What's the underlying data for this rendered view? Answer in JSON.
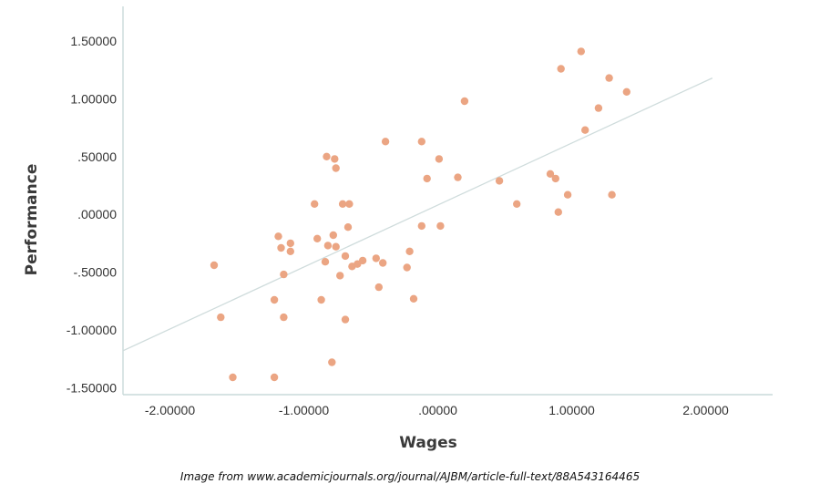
{
  "chart_data": {
    "type": "scatter",
    "xlabel": "Wages",
    "ylabel": "Performance",
    "xlim": [
      -2.35,
      2.5
    ],
    "ylim": [
      -1.56,
      1.8
    ],
    "x_ticks": [
      -2.0,
      -1.0,
      0.0,
      1.0,
      2.0
    ],
    "x_tick_labels": [
      "-2.00000",
      "-1.00000",
      ".00000",
      "1.00000",
      "2.00000"
    ],
    "y_ticks": [
      -1.5,
      -1.0,
      -0.5,
      0.0,
      0.5,
      1.0,
      1.5
    ],
    "y_tick_labels": [
      "-1.50000",
      "-1.00000",
      "-.50000",
      ".00000",
      ".50000",
      "1.00000",
      "1.50000"
    ],
    "grid": false,
    "legend": "none",
    "point_color": "#eba583",
    "fit_line_color": "#cfdcdc",
    "fit_line": {
      "x": [
        -2.35,
        2.05
      ],
      "y": [
        -1.18,
        1.18
      ]
    },
    "points": [
      {
        "x": -1.67,
        "y": -0.44
      },
      {
        "x": -1.62,
        "y": -0.89
      },
      {
        "x": -1.53,
        "y": -1.41
      },
      {
        "x": -1.22,
        "y": -1.41
      },
      {
        "x": -1.22,
        "y": -0.74
      },
      {
        "x": -1.19,
        "y": -0.19
      },
      {
        "x": -1.17,
        "y": -0.29
      },
      {
        "x": -1.15,
        "y": -0.52
      },
      {
        "x": -1.15,
        "y": -0.89
      },
      {
        "x": -1.1,
        "y": -0.25
      },
      {
        "x": -1.1,
        "y": -0.32
      },
      {
        "x": -0.92,
        "y": 0.09
      },
      {
        "x": -0.9,
        "y": -0.21
      },
      {
        "x": -0.87,
        "y": -0.74
      },
      {
        "x": -0.84,
        "y": -0.41
      },
      {
        "x": -0.83,
        "y": 0.5
      },
      {
        "x": -0.82,
        "y": -0.27
      },
      {
        "x": -0.79,
        "y": -1.28
      },
      {
        "x": -0.78,
        "y": -0.18
      },
      {
        "x": -0.77,
        "y": 0.48
      },
      {
        "x": -0.76,
        "y": 0.4
      },
      {
        "x": -0.76,
        "y": -0.28
      },
      {
        "x": -0.73,
        "y": -0.53
      },
      {
        "x": -0.71,
        "y": 0.09
      },
      {
        "x": -0.69,
        "y": -0.36
      },
      {
        "x": -0.69,
        "y": -0.91
      },
      {
        "x": -0.67,
        "y": -0.11
      },
      {
        "x": -0.66,
        "y": 0.09
      },
      {
        "x": -0.64,
        "y": -0.45
      },
      {
        "x": -0.6,
        "y": -0.43
      },
      {
        "x": -0.56,
        "y": -0.4
      },
      {
        "x": -0.46,
        "y": -0.38
      },
      {
        "x": -0.44,
        "y": -0.63
      },
      {
        "x": -0.41,
        "y": -0.42
      },
      {
        "x": -0.39,
        "y": 0.63
      },
      {
        "x": -0.23,
        "y": -0.46
      },
      {
        "x": -0.21,
        "y": -0.32
      },
      {
        "x": -0.18,
        "y": -0.73
      },
      {
        "x": -0.12,
        "y": 0.63
      },
      {
        "x": -0.12,
        "y": -0.1
      },
      {
        "x": -0.08,
        "y": 0.31
      },
      {
        "x": 0.01,
        "y": 0.48
      },
      {
        "x": 0.02,
        "y": -0.1
      },
      {
        "x": 0.15,
        "y": 0.32
      },
      {
        "x": 0.2,
        "y": 0.98
      },
      {
        "x": 0.46,
        "y": 0.29
      },
      {
        "x": 0.59,
        "y": 0.09
      },
      {
        "x": 0.84,
        "y": 0.35
      },
      {
        "x": 0.88,
        "y": 0.31
      },
      {
        "x": 0.9,
        "y": 0.02
      },
      {
        "x": 0.92,
        "y": 1.26
      },
      {
        "x": 0.97,
        "y": 0.17
      },
      {
        "x": 1.07,
        "y": 1.41
      },
      {
        "x": 1.1,
        "y": 0.73
      },
      {
        "x": 1.2,
        "y": 0.92
      },
      {
        "x": 1.28,
        "y": 1.18
      },
      {
        "x": 1.3,
        "y": 0.17
      },
      {
        "x": 1.41,
        "y": 1.06
      }
    ]
  },
  "caption": "Image from www.academicjournals.org/journal/AJBM/article-full-text/88A543164465"
}
